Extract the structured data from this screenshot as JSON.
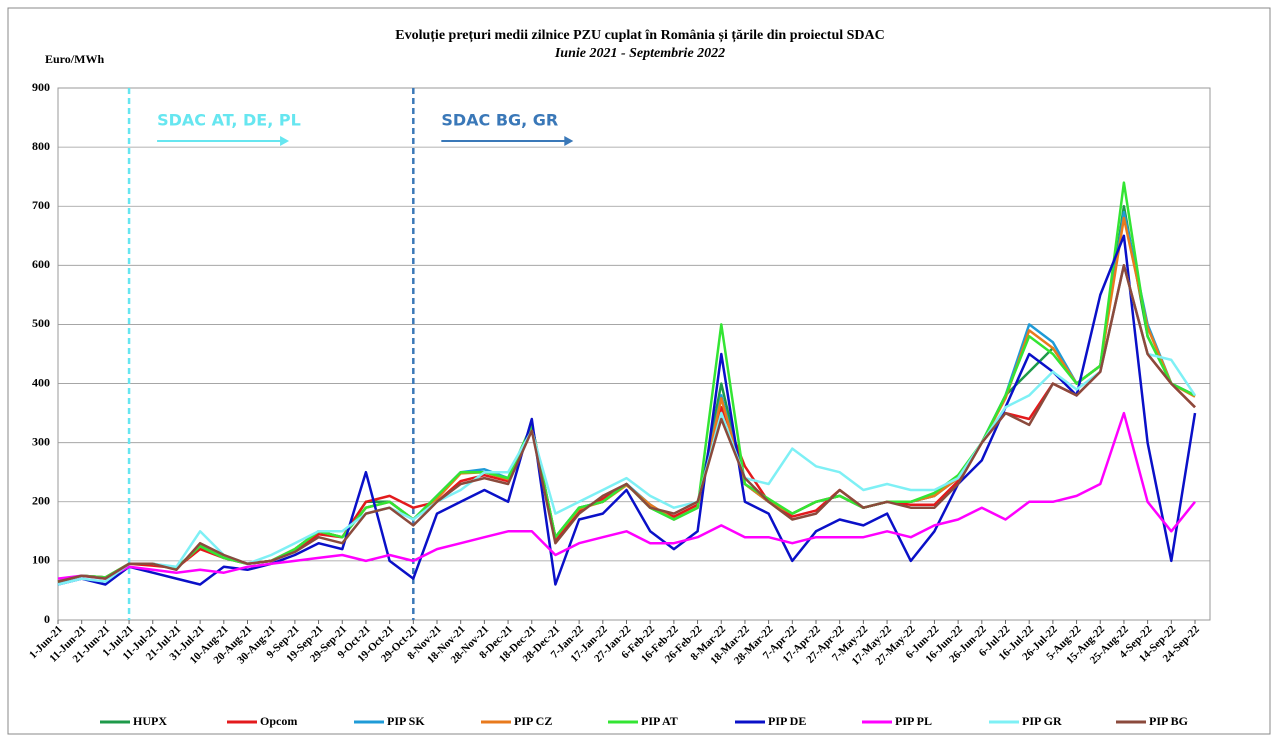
{
  "chart_data": {
    "type": "line",
    "title": "Evoluție prețuri medii zilnice PZU cuplat în România și țările din proiectul SDAC",
    "subtitle": "Iunie 2021 - Septembrie 2022",
    "y_label": "Euro/MWh",
    "categories": [
      "1-Jun-21",
      "11-Jun-21",
      "21-Jun-21",
      "1-Jul-21",
      "11-Jul-21",
      "21-Jul-21",
      "31-Jul-21",
      "10-Aug-21",
      "20-Aug-21",
      "30-Aug-21",
      "9-Sep-21",
      "19-Sep-21",
      "29-Sep-21",
      "9-Oct-21",
      "19-Oct-21",
      "29-Oct-21",
      "8-Nov-21",
      "18-Nov-21",
      "28-Nov-21",
      "8-Dec-21",
      "18-Dec-21",
      "28-Dec-21",
      "7-Jan-22",
      "17-Jan-22",
      "27-Jan-22",
      "6-Feb-22",
      "16-Feb-22",
      "26-Feb-22",
      "8-Mar-22",
      "18-Mar-22",
      "28-Mar-22",
      "7-Apr-22",
      "17-Apr-22",
      "27-Apr-22",
      "7-May-22",
      "17-May-22",
      "27-May-22",
      "6-Jun-22",
      "16-Jun-22",
      "26-Jun-22",
      "6-Jul-22",
      "16-Jul-22",
      "26-Jul-22",
      "5-Aug-22",
      "15-Aug-22",
      "25-Aug-22",
      "4-Sep-22",
      "14-Sep-22",
      "24-Sep-22"
    ],
    "series": [
      {
        "name": "HUPX",
        "color": "#1e9a4a",
        "values": [
          65,
          75,
          72,
          95,
          95,
          88,
          125,
          105,
          95,
          100,
          120,
          150,
          140,
          200,
          200,
          170,
          210,
          250,
          250,
          240,
          330,
          140,
          190,
          200,
          230,
          190,
          170,
          190,
          400,
          230,
          200,
          180,
          200,
          210,
          190,
          200,
          200,
          210,
          240,
          300,
          380,
          420,
          460,
          400,
          430,
          700,
          480,
          400,
          380
        ]
      },
      {
        "name": "Opcom",
        "color": "#e31a1c",
        "values": [
          65,
          75,
          72,
          95,
          92,
          88,
          120,
          105,
          95,
          100,
          118,
          145,
          140,
          200,
          210,
          190,
          200,
          235,
          245,
          235,
          325,
          135,
          185,
          205,
          230,
          190,
          175,
          195,
          360,
          260,
          200,
          175,
          185,
          220,
          190,
          200,
          195,
          195,
          235,
          300,
          350,
          340,
          400,
          380,
          420,
          600,
          450,
          400,
          360
        ]
      },
      {
        "name": "PIP SK",
        "color": "#1f9bd7",
        "values": [
          65,
          75,
          72,
          95,
          95,
          88,
          125,
          105,
          95,
          100,
          120,
          150,
          140,
          190,
          200,
          170,
          210,
          250,
          255,
          240,
          330,
          140,
          190,
          200,
          230,
          195,
          170,
          190,
          380,
          230,
          200,
          180,
          200,
          210,
          190,
          200,
          200,
          210,
          240,
          300,
          380,
          500,
          470,
          400,
          430,
          690,
          500,
          400,
          380
        ]
      },
      {
        "name": "PIP CZ",
        "color": "#e87a1d",
        "values": [
          65,
          75,
          72,
          95,
          95,
          88,
          125,
          105,
          95,
          100,
          120,
          150,
          140,
          190,
          200,
          170,
          205,
          248,
          250,
          238,
          330,
          140,
          188,
          200,
          228,
          195,
          170,
          190,
          375,
          230,
          200,
          180,
          200,
          210,
          190,
          200,
          200,
          210,
          240,
          300,
          375,
          490,
          460,
          400,
          430,
          680,
          495,
          400,
          378
        ]
      },
      {
        "name": "PIP AT",
        "color": "#33e533",
        "values": [
          65,
          75,
          72,
          95,
          95,
          88,
          125,
          105,
          95,
          100,
          120,
          150,
          140,
          190,
          200,
          170,
          210,
          250,
          250,
          240,
          330,
          140,
          190,
          200,
          230,
          190,
          170,
          190,
          500,
          230,
          205,
          180,
          200,
          210,
          190,
          200,
          200,
          215,
          245,
          300,
          380,
          480,
          450,
          400,
          430,
          740,
          480,
          400,
          380
        ]
      },
      {
        "name": "PIP DE",
        "color": "#0a10c8",
        "values": [
          60,
          70,
          60,
          90,
          80,
          70,
          60,
          90,
          85,
          95,
          110,
          130,
          120,
          250,
          100,
          70,
          180,
          200,
          220,
          200,
          340,
          60,
          170,
          180,
          220,
          150,
          120,
          150,
          450,
          200,
          180,
          100,
          150,
          170,
          160,
          180,
          100,
          150,
          230,
          270,
          360,
          450,
          420,
          380,
          550,
          650,
          300,
          100,
          350
        ]
      },
      {
        "name": "PIP PL",
        "color": "#ff00ff",
        "values": [
          70,
          75,
          70,
          90,
          85,
          80,
          85,
          80,
          90,
          95,
          100,
          105,
          110,
          100,
          110,
          100,
          120,
          130,
          140,
          150,
          150,
          110,
          130,
          140,
          150,
          130,
          130,
          140,
          160,
          140,
          140,
          130,
          140,
          140,
          140,
          150,
          140,
          160,
          170,
          190,
          170,
          200,
          200,
          210,
          230,
          350,
          200,
          150,
          200
        ]
      },
      {
        "name": "PIP GR",
        "color": "#7ef0f5",
        "values": [
          60,
          70,
          65,
          95,
          95,
          90,
          150,
          110,
          95,
          110,
          130,
          150,
          150,
          180,
          190,
          170,
          200,
          220,
          250,
          250,
          320,
          180,
          200,
          220,
          240,
          210,
          190,
          200,
          350,
          240,
          230,
          290,
          260,
          250,
          220,
          230,
          220,
          220,
          240,
          300,
          360,
          380,
          420,
          390,
          420,
          600,
          450,
          440,
          380
        ]
      },
      {
        "name": "PIP BG",
        "color": "#8b4a3c",
        "values": [
          65,
          75,
          70,
          95,
          95,
          85,
          130,
          110,
          95,
          100,
          115,
          140,
          130,
          180,
          190,
          160,
          200,
          230,
          240,
          230,
          320,
          130,
          180,
          210,
          230,
          190,
          180,
          200,
          340,
          240,
          200,
          170,
          180,
          220,
          190,
          200,
          190,
          190,
          230,
          300,
          350,
          330,
          400,
          380,
          420,
          600,
          450,
          400,
          360
        ]
      }
    ],
    "annotations": [
      {
        "text": "SDAC AT, DE, PL",
        "x": "1-Jul-21",
        "color": "#66e6f0"
      },
      {
        "text": "SDAC BG, GR",
        "x": "29-Oct-21",
        "color": "#3a78b8"
      }
    ],
    "ylim": [
      0,
      900
    ],
    "yticks": [
      0,
      100,
      200,
      300,
      400,
      500,
      600,
      700,
      800,
      900
    ],
    "grid": true,
    "legend": "bottom"
  }
}
